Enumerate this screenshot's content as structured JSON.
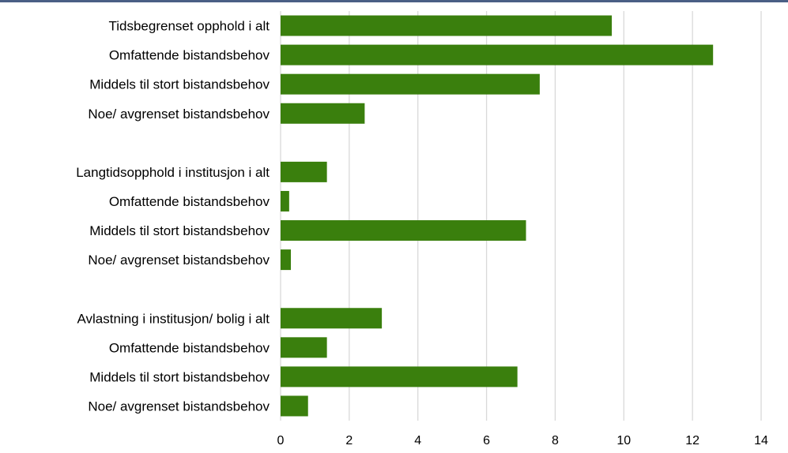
{
  "colors": {
    "bar": "#3a7f0d",
    "grid": "#d9d9d9",
    "top_border": "#4a5f85"
  },
  "chart_data": {
    "type": "bar",
    "orientation": "horizontal",
    "title": "",
    "xlabel": "",
    "ylabel": "",
    "xlim": [
      0,
      14
    ],
    "x_ticks": [
      0,
      2,
      4,
      6,
      8,
      10,
      12,
      14
    ],
    "grid": true,
    "legend": "none",
    "categories": [
      "Tidsbegrenset opphold i alt",
      "Omfattende bistandsbehov",
      "Middels til stort bistandsbehov",
      "Noe/ avgrenset bistandsbehov",
      "",
      "Langtidsopphold i institusjon i alt",
      "Omfattende bistandsbehov",
      "Middels til stort bistandsbehov",
      "Noe/ avgrenset bistandsbehov",
      "",
      "Avlastning i institusjon/ bolig i alt",
      "Omfattende bistandsbehov",
      "Middels til stort bistandsbehov",
      "Noe/ avgrenset bistandsbehov"
    ],
    "values": [
      9.65,
      12.6,
      7.55,
      2.45,
      null,
      1.35,
      0.25,
      7.15,
      0.3,
      null,
      2.95,
      1.35,
      6.9,
      0.8
    ]
  }
}
